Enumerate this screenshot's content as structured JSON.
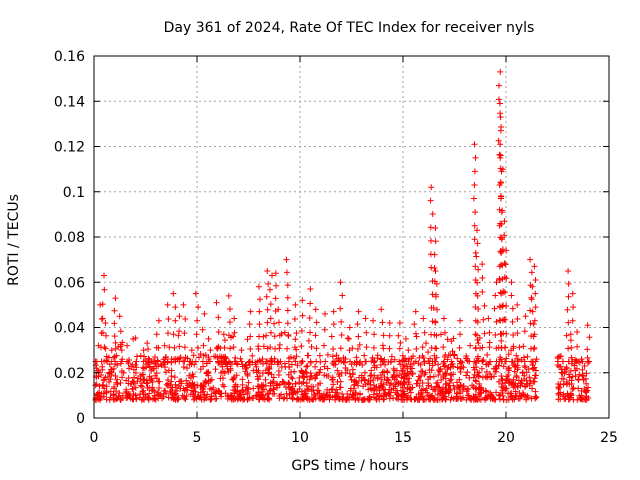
{
  "chart_data": {
    "type": "scatter",
    "title": "Day 361 of 2024, Rate Of TEC Index for receiver nyls",
    "xlabel": "GPS time / hours",
    "ylabel": "ROTI / TECUs",
    "xlim": [
      0,
      25
    ],
    "ylim": [
      0,
      0.16
    ],
    "x_ticks": [
      "0",
      "5",
      "10",
      "15",
      "20",
      "25"
    ],
    "y_ticks": [
      "0",
      "0.02",
      "0.04",
      "0.06",
      "0.08",
      "0.1",
      "0.12",
      "0.14",
      "0.16"
    ],
    "grid": true,
    "marker": "plus",
    "color": "#ff0000",
    "series": [
      {
        "x": [
          0.1,
          0.2,
          0.35,
          0.45,
          0.6,
          0.9,
          1.0,
          1.3,
          1.6,
          2.0,
          2.4,
          2.8,
          3.1,
          3.4,
          3.6,
          3.9,
          4.1,
          4.4,
          4.7,
          5.0,
          5.3,
          5.6,
          6.0,
          6.3,
          6.6,
          6.8,
          7.2,
          7.6,
          8.0,
          8.4,
          8.6,
          8.8,
          9.0,
          9.4,
          9.8,
          10.1,
          10.5,
          10.8,
          11.2,
          11.6,
          12.0,
          12.4,
          12.8,
          13.2,
          13.6,
          14.0,
          14.4,
          14.8,
          15.2,
          15.6,
          16.0,
          16.4,
          16.55,
          16.6,
          17.0,
          17.4,
          17.8,
          18.2,
          18.5,
          18.6,
          18.9,
          19.2,
          19.5,
          19.7,
          19.75,
          19.8,
          19.9,
          20.0,
          20.3,
          20.6,
          20.9,
          21.2,
          21.3,
          21.4,
          22.5,
          22.8,
          23.0,
          23.2,
          23.4,
          23.7,
          24.0
        ],
        "y": [
          0.022,
          0.032,
          0.05,
          0.063,
          0.042,
          0.03,
          0.053,
          0.045,
          0.032,
          0.025,
          0.03,
          0.025,
          0.043,
          0.032,
          0.05,
          0.055,
          0.045,
          0.05,
          0.03,
          0.055,
          0.046,
          0.035,
          0.051,
          0.037,
          0.054,
          0.044,
          0.03,
          0.047,
          0.058,
          0.065,
          0.063,
          0.064,
          0.048,
          0.07,
          0.05,
          0.052,
          0.057,
          0.048,
          0.046,
          0.047,
          0.06,
          0.04,
          0.047,
          0.044,
          0.043,
          0.048,
          0.042,
          0.042,
          0.035,
          0.047,
          0.044,
          0.102,
          0.084,
          0.065,
          0.044,
          0.034,
          0.043,
          0.032,
          0.121,
          0.083,
          0.068,
          0.044,
          0.06,
          0.153,
          0.139,
          0.116,
          0.087,
          0.074,
          0.06,
          0.05,
          0.045,
          0.07,
          0.058,
          0.067,
          0.027,
          0.025,
          0.065,
          0.055,
          0.038,
          0.026,
          0.041
        ]
      }
    ],
    "band": {
      "segments": [
        [
          0.05,
          21.5
        ],
        [
          22.5,
          24.0
        ]
      ],
      "y_low": 0.008,
      "y_high": 0.028
    }
  }
}
